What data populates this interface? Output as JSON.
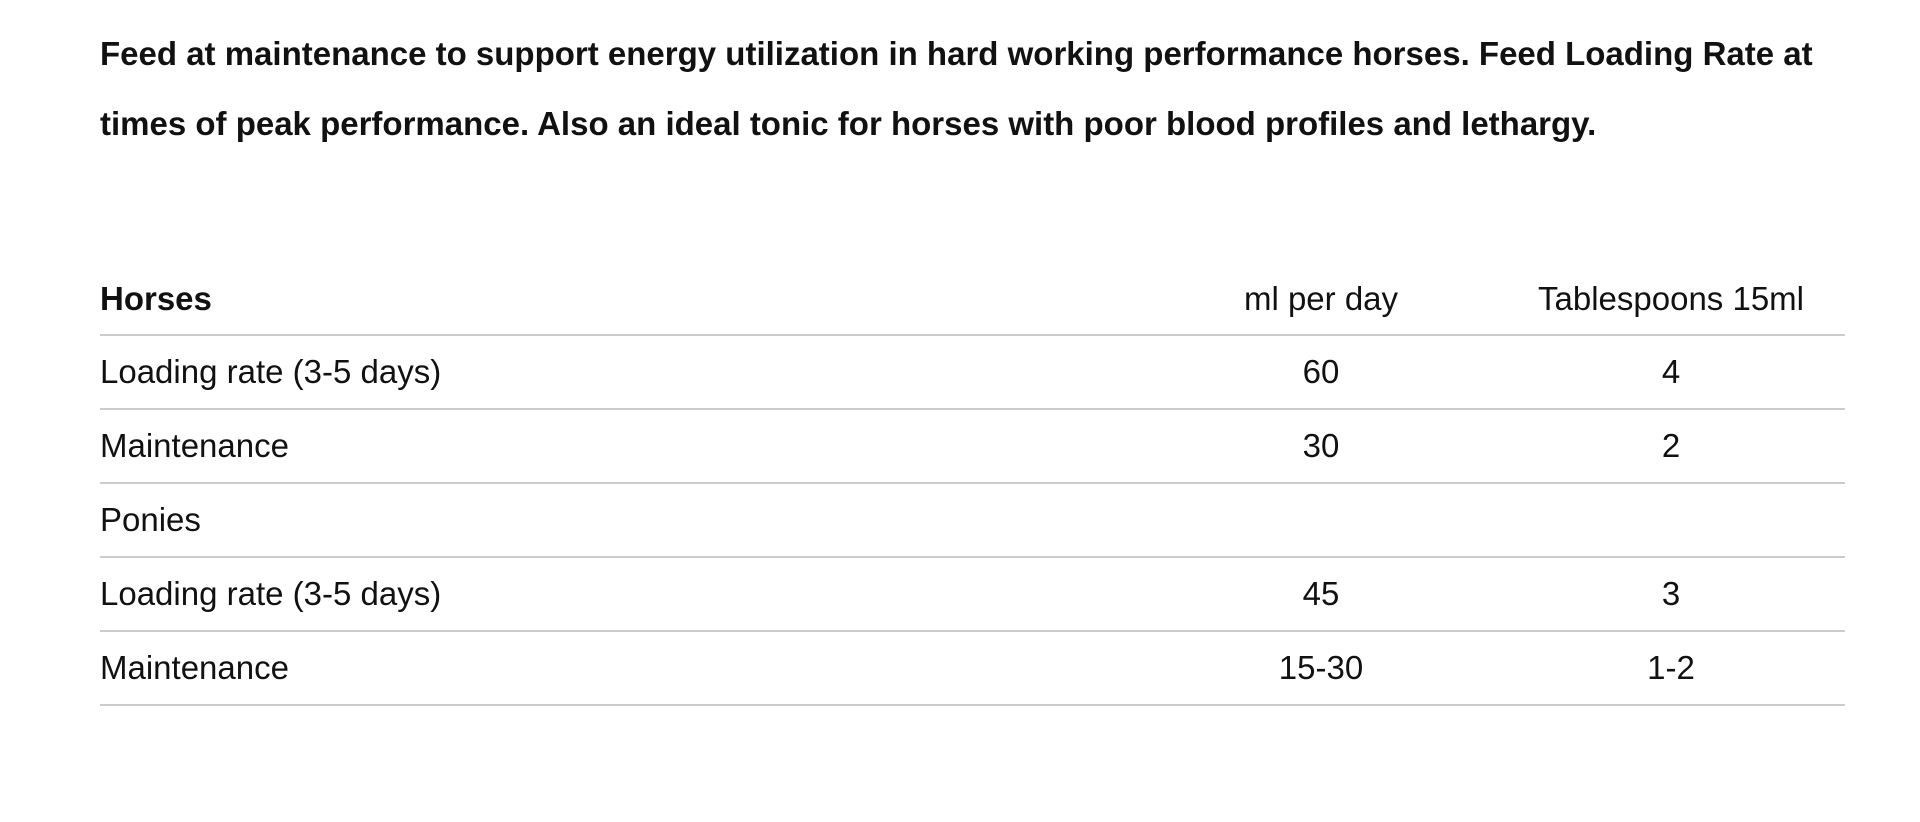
{
  "intro": "Feed at maintenance to support energy utilization in hard working performance horses. Feed Loading Rate at times of peak performance. Also an ideal tonic for horses with poor blood profiles and lethargy.",
  "table": {
    "header": [
      "Horses",
      "ml per day",
      "Tablespoons 15ml"
    ],
    "rows": [
      [
        "Loading rate (3-5 days)",
        60,
        4
      ],
      [
        "Maintenance",
        30,
        2
      ],
      [
        "Ponies"
      ],
      [
        "Loading rate (3-5 days)",
        45,
        3
      ],
      [
        "Maintenance",
        "15-30",
        "1-2"
      ]
    ]
  }
}
